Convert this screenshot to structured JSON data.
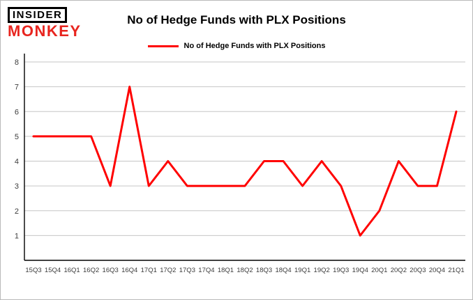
{
  "logo": {
    "line1": "INSIDER",
    "line2": "MONKEY"
  },
  "header": {
    "title": "No of Hedge Funds with PLX Positions"
  },
  "legend": {
    "label": "No of Hedge Funds with PLX Positions",
    "color": "#ff0000"
  },
  "chart_data": {
    "type": "line",
    "title": "No of Hedge Funds with PLX Positions",
    "categories": [
      "15Q3",
      "15Q4",
      "16Q1",
      "16Q2",
      "16Q3",
      "16Q4",
      "17Q1",
      "17Q2",
      "17Q3",
      "17Q4",
      "18Q1",
      "18Q2",
      "18Q3",
      "18Q4",
      "19Q1",
      "19Q2",
      "19Q3",
      "19Q4",
      "20Q1",
      "20Q2",
      "20Q3",
      "20Q4",
      "21Q1"
    ],
    "series": [
      {
        "name": "No of Hedge Funds with PLX Positions",
        "color": "#ff0000",
        "values": [
          5,
          5,
          5,
          5,
          3,
          7,
          3,
          4,
          3,
          3,
          3,
          3,
          4,
          4,
          3,
          4,
          3,
          1,
          2,
          4,
          3,
          3,
          6
        ]
      }
    ],
    "xlabel": "",
    "ylabel": "",
    "ylim": [
      0,
      8
    ],
    "yticks": [
      1,
      2,
      3,
      4,
      5,
      6,
      7,
      8
    ],
    "grid": true,
    "legend_position": "top",
    "gridline_color": "#c6c6c6",
    "axis_color": "#000000",
    "tick_label_color": "#3c3c3c"
  }
}
